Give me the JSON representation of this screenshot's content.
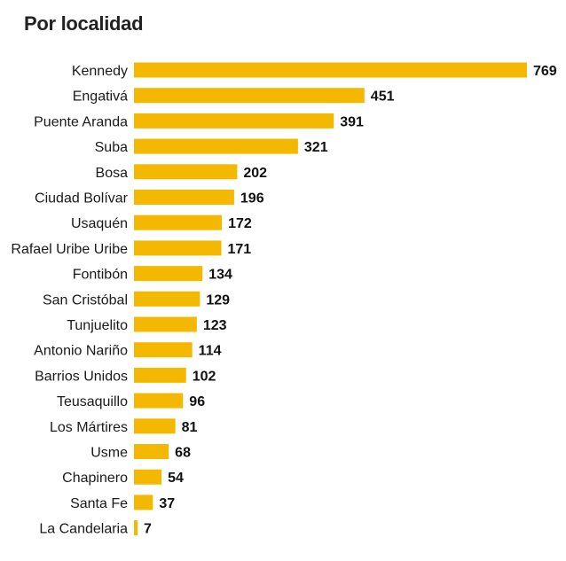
{
  "chart_data": {
    "type": "bar",
    "orientation": "horizontal",
    "title": "Por localidad",
    "categories": [
      "Kennedy",
      "Engativá",
      "Puente Aranda",
      "Suba",
      "Bosa",
      "Ciudad Bolívar",
      "Usaquén",
      "Rafael Uribe Uribe",
      "Fontibón",
      "San Cristóbal",
      "Tunjuelito",
      "Antonio Nariño",
      "Barrios Unidos",
      "Teusaquillo",
      "Los Mártires",
      "Usme",
      "Chapinero",
      "Santa Fe",
      "La Candelaria"
    ],
    "values": [
      769,
      451,
      391,
      321,
      202,
      196,
      172,
      171,
      134,
      129,
      123,
      114,
      102,
      96,
      81,
      68,
      54,
      37,
      7
    ],
    "xlim": [
      0,
      769
    ],
    "grid": false,
    "legend": "none",
    "bar_color": "#f5b800"
  }
}
